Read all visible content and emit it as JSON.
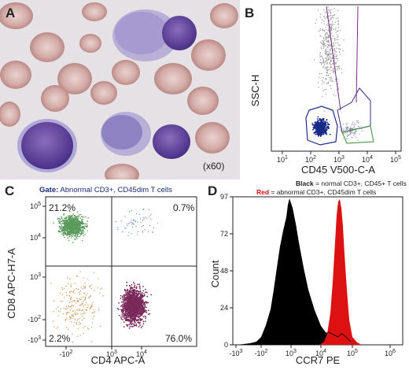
{
  "panels": {
    "a": {
      "label": "A",
      "magnification": "(x60)"
    },
    "b": {
      "label": "B",
      "ylabel": "SSC-H",
      "xlabel": "CD45 V500-C-A",
      "xticks": [
        "10",
        "10",
        "10",
        "10",
        "10"
      ],
      "xtick_exps": [
        "1",
        "2",
        "3",
        "4",
        "5"
      ]
    },
    "c": {
      "label": "C",
      "gate_label": "Gate:",
      "gate_text": " Abnormal CD3+, CD45dim T cells",
      "ylabel": "CD8 APC-H7-A",
      "xlabel": "CD4 APC-A",
      "quadrants": {
        "ul": "21.2%",
        "ur": "0.7%",
        "ll": "2.2%",
        "lr": "76.0%"
      },
      "yticks": [
        {
          "b": "10",
          "e": "5"
        },
        {
          "b": "10",
          "e": "4"
        },
        {
          "b": "10",
          "e": "3"
        },
        {
          "b": "-10",
          "e": "2"
        },
        {
          "b": "-10",
          "e": "3"
        }
      ],
      "xticks": [
        {
          "b": "-10",
          "e": "2"
        },
        {
          "b": "10",
          "e": "3"
        },
        {
          "b": "10",
          "e": "4"
        }
      ]
    },
    "d": {
      "label": "D",
      "legend_black_key": "Black",
      "legend_black_text": " = normal CD3+, CD45+ T cells",
      "legend_red_key": "Red",
      "legend_red_text": " = abnormal CD3+, CD45dim T cells",
      "ylabel": "Count",
      "xlabel": "CCR7 PE",
      "yticks": [
        "97",
        "72",
        "48",
        "24",
        "0"
      ],
      "xticks": [
        {
          "b": "-10",
          "e": "3"
        },
        {
          "b": "-10",
          "e": "2"
        },
        {
          "b": "10",
          "e": "3"
        },
        {
          "b": "10",
          "e": "4"
        },
        {
          "b": "10",
          "e": "5"
        },
        {
          "b": "10",
          "e": "6"
        }
      ]
    }
  },
  "colors": {
    "cd8_population": "#5a9a5a",
    "cd4_population": "#7a2a5a",
    "ccr7_normal": "#000000",
    "ccr7_abnormal": "#dd1111",
    "lymph_gate": "#1a2a8a"
  }
}
